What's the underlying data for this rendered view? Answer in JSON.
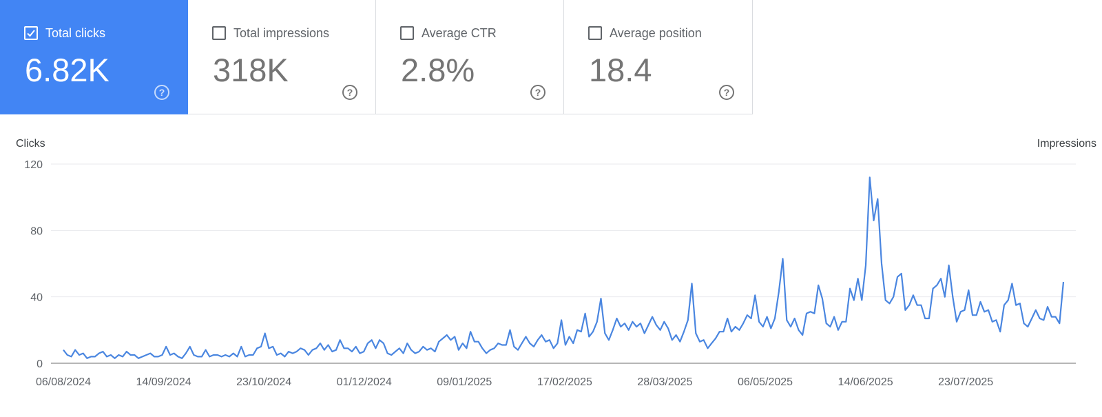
{
  "metrics": [
    {
      "label": "Total clicks",
      "value": "6.82K",
      "active": true
    },
    {
      "label": "Total impressions",
      "value": "318K",
      "active": false
    },
    {
      "label": "Average CTR",
      "value": "2.8%",
      "active": false
    },
    {
      "label": "Average position",
      "value": "18.4",
      "active": false
    }
  ],
  "colors": {
    "accent": "#4285f4",
    "line": "#4a86e0"
  },
  "chart_data": {
    "type": "line",
    "ylabel_left": "Clicks",
    "ylabel_right": "Impressions",
    "ylim": [
      0,
      120
    ],
    "yticks": [
      0,
      40,
      80,
      120
    ],
    "x_start": "06/08/2024",
    "x_end": "30/08/2025",
    "xtick_labels": [
      "06/08/2024",
      "14/09/2024",
      "23/10/2024",
      "01/12/2024",
      "09/01/2025",
      "17/02/2025",
      "28/03/2025",
      "06/05/2025",
      "14/06/2025",
      "23/07/2025"
    ],
    "series": [
      {
        "values": [
          8,
          5,
          4,
          8,
          5,
          6,
          3,
          4,
          4,
          6,
          7,
          4,
          5,
          3,
          5,
          4,
          7,
          5,
          5,
          3,
          4,
          5,
          6,
          4,
          4,
          5,
          10,
          5,
          6,
          4,
          3,
          6,
          10,
          5,
          4,
          4,
          8,
          4,
          5,
          5,
          4,
          5,
          4,
          6,
          4,
          10,
          4,
          5,
          5,
          9,
          10,
          18,
          9,
          10,
          5,
          6,
          4,
          7,
          6,
          7,
          9,
          8,
          5,
          8,
          9,
          12,
          8,
          11,
          7,
          8,
          14,
          9,
          9,
          7,
          10,
          6,
          7,
          12,
          14,
          9,
          14,
          12,
          6,
          5,
          7,
          9,
          6,
          12,
          8,
          6,
          7,
          10,
          8,
          9,
          7,
          13,
          15,
          17,
          14,
          16,
          8,
          12,
          9,
          19,
          13,
          13,
          9,
          6,
          8,
          9,
          12,
          11,
          11,
          20,
          10,
          8,
          12,
          16,
          12,
          10,
          14,
          17,
          13,
          14,
          9,
          12,
          26,
          11,
          16,
          12,
          20,
          19,
          30,
          16,
          19,
          25,
          39,
          18,
          14,
          20,
          27,
          22,
          24,
          20,
          25,
          22,
          24,
          18,
          23,
          28,
          23,
          20,
          25,
          21,
          14,
          17,
          13,
          19,
          26,
          48,
          18,
          13,
          14,
          9,
          12,
          15,
          19,
          19,
          27,
          19,
          22,
          20,
          24,
          29,
          27,
          41,
          25,
          22,
          28,
          21,
          27,
          43,
          63,
          26,
          22,
          27,
          20,
          17,
          30,
          31,
          30,
          47,
          39,
          24,
          22,
          28,
          20,
          25,
          25,
          45,
          38,
          51,
          38,
          59,
          112,
          86,
          99,
          60,
          38,
          36,
          40,
          52,
          54,
          32,
          35,
          41,
          35,
          35,
          27,
          27,
          45,
          47,
          51,
          40,
          59,
          40,
          25,
          31,
          32,
          44,
          29,
          29,
          37,
          31,
          32,
          25,
          26,
          19,
          35,
          38,
          48,
          35,
          36,
          24,
          22,
          27,
          32,
          27,
          26,
          34,
          28,
          28,
          24,
          49
        ]
      }
    ]
  }
}
